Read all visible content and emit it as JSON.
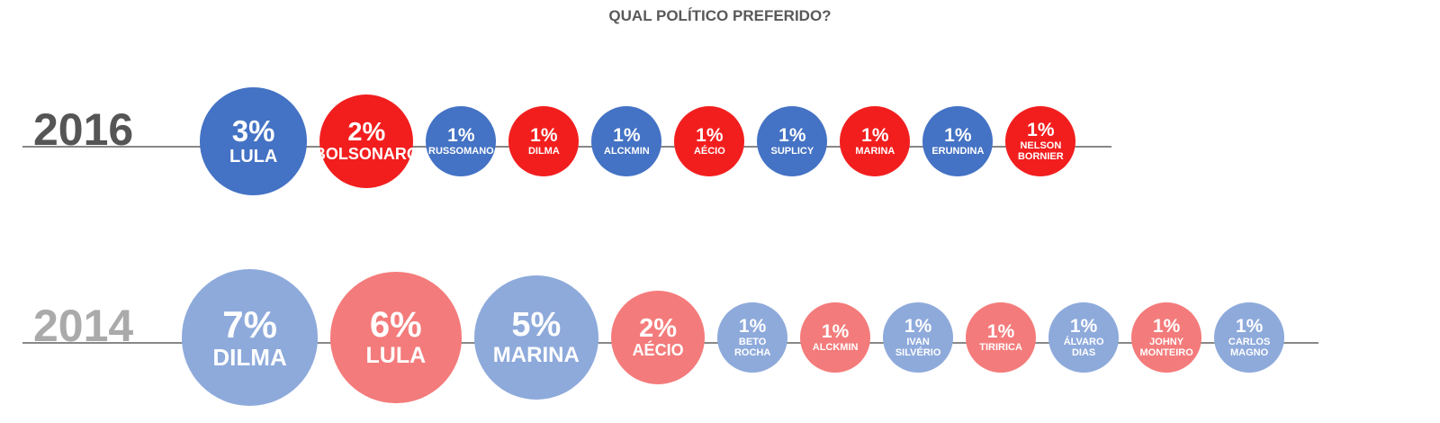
{
  "chart_data": {
    "type": "bubble-row",
    "title": "QUAL POLÍTICO PREFERIDO?",
    "groups": [
      {
        "name": "2016",
        "categories": [
          "LULA",
          "BOLSONARO",
          "RUSSOMANO",
          "DILMA",
          "ALCKMIN",
          "AÉCIO",
          "SUPLICY",
          "MARINA",
          "ERUNDINA",
          "NELSON BORNIER"
        ],
        "values": [
          3,
          2,
          1,
          1,
          1,
          1,
          1,
          1,
          1,
          1
        ],
        "value_labels": [
          "3%",
          "2%",
          "1%",
          "1%",
          "1%",
          "1%",
          "1%",
          "1%",
          "1%",
          "1%"
        ],
        "colors": [
          "#4472c4",
          "#f21e1e",
          "#4472c4",
          "#f21e1e",
          "#4472c4",
          "#f21e1e",
          "#4472c4",
          "#f21e1e",
          "#4472c4",
          "#f21e1e"
        ]
      },
      {
        "name": "2014",
        "categories": [
          "DILMA",
          "LULA",
          "MARINA",
          "AÉCIO",
          "BETO ROCHA",
          "ALCKMIN",
          "IVAN SILVÉRIO",
          "TIRIRICA",
          "ÁLVARO DIAS",
          "JOHNY MONTEIRO",
          "CARLOS MAGNO"
        ],
        "values": [
          7,
          6,
          5,
          2,
          1,
          1,
          1,
          1,
          1,
          1,
          1
        ],
        "value_labels": [
          "7%",
          "6%",
          "5%",
          "2%",
          "1%",
          "1%",
          "1%",
          "1%",
          "1%",
          "1%",
          "1%"
        ],
        "colors": [
          "#8eaadb",
          "#f47b7b",
          "#8eaadb",
          "#f47b7b",
          "#8eaadb",
          "#f47b7b",
          "#8eaadb",
          "#f47b7b",
          "#8eaadb",
          "#f47b7b",
          "#8eaadb"
        ]
      }
    ]
  }
}
